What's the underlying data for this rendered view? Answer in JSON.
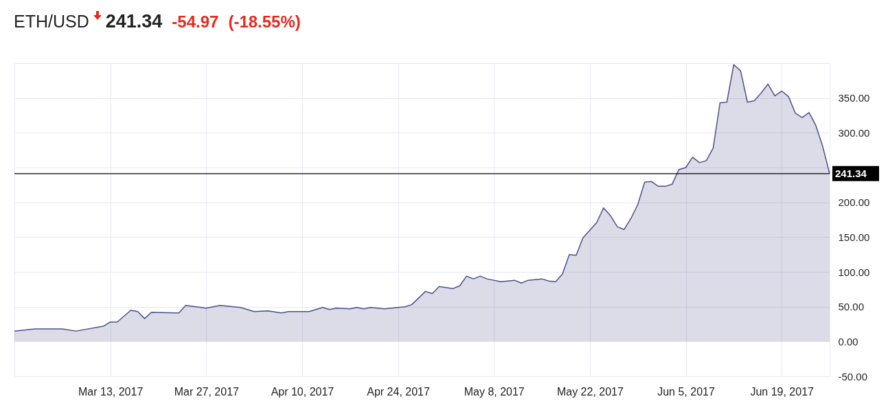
{
  "chart_data": {
    "type": "area",
    "title": "ETH/USD",
    "annotations": [
      "241.34",
      "-54.97",
      "(-18.55%)"
    ],
    "x": [
      "2017-02-27",
      "2017-03-02",
      "2017-03-06",
      "2017-03-08",
      "2017-03-12",
      "2017-03-13",
      "2017-03-14",
      "2017-03-16",
      "2017-03-17",
      "2017-03-18",
      "2017-03-19",
      "2017-03-23",
      "2017-03-24",
      "2017-03-27",
      "2017-03-29",
      "2017-04-01",
      "2017-04-03",
      "2017-04-05",
      "2017-04-07",
      "2017-04-08",
      "2017-04-11",
      "2017-04-13",
      "2017-04-14",
      "2017-04-15",
      "2017-04-17",
      "2017-04-18",
      "2017-04-19",
      "2017-04-20",
      "2017-04-22",
      "2017-04-24",
      "2017-04-25",
      "2017-04-26",
      "2017-04-28",
      "2017-04-29",
      "2017-04-30",
      "2017-05-02",
      "2017-05-03",
      "2017-05-04",
      "2017-05-05",
      "2017-05-06",
      "2017-05-07",
      "2017-05-09",
      "2017-05-11",
      "2017-05-12",
      "2017-05-13",
      "2017-05-15",
      "2017-05-16",
      "2017-05-17",
      "2017-05-18",
      "2017-05-19",
      "2017-05-20",
      "2017-05-21",
      "2017-05-22",
      "2017-05-23",
      "2017-05-24",
      "2017-05-25",
      "2017-05-26",
      "2017-05-27",
      "2017-05-28",
      "2017-05-29",
      "2017-05-30",
      "2017-05-31",
      "2017-06-01",
      "2017-06-02",
      "2017-06-03",
      "2017-06-04",
      "2017-06-05",
      "2017-06-06",
      "2017-06-07",
      "2017-06-08",
      "2017-06-09",
      "2017-06-10",
      "2017-06-11",
      "2017-06-12",
      "2017-06-13",
      "2017-06-14",
      "2017-06-15",
      "2017-06-16",
      "2017-06-17",
      "2017-06-18",
      "2017-06-19",
      "2017-06-20",
      "2017-06-21",
      "2017-06-22",
      "2017-06-23",
      "2017-06-24",
      "2017-06-25",
      "2017-06-26"
    ],
    "series": [
      {
        "color": "#4b5088",
        "values": [
          15,
          18,
          18,
          15,
          22,
          28,
          28,
          45,
          43,
          33,
          42,
          41,
          52,
          48,
          52,
          49,
          43,
          44,
          41,
          43,
          43,
          49,
          46,
          48,
          47,
          49,
          47,
          49,
          47,
          49,
          50,
          53,
          72,
          69,
          79,
          76,
          80,
          94,
          90,
          94,
          90,
          86,
          88,
          84,
          88,
          90,
          87,
          86,
          97,
          125,
          124,
          149,
          160,
          171,
          192,
          181,
          165,
          161,
          177,
          197,
          229,
          230,
          223,
          223,
          226,
          247,
          250,
          265,
          257,
          260,
          278,
          343,
          344,
          398,
          389,
          344,
          346,
          357,
          370,
          353,
          360,
          352,
          328,
          322,
          329,
          310,
          280,
          241.34
        ]
      }
    ],
    "xlim": [
      "2017-02-27",
      "2017-06-26"
    ],
    "xticks": [
      {
        "value": "2017-03-13",
        "label": "Mar 13, 2017"
      },
      {
        "value": "2017-03-27",
        "label": "Mar 27, 2017"
      },
      {
        "value": "2017-04-10",
        "label": "Apr 10, 2017"
      },
      {
        "value": "2017-04-24",
        "label": "Apr 24, 2017"
      },
      {
        "value": "2017-05-08",
        "label": "May 8, 2017"
      },
      {
        "value": "2017-05-22",
        "label": "May 22, 2017"
      },
      {
        "value": "2017-06-05",
        "label": "Jun 5, 2017"
      },
      {
        "value": "2017-06-19",
        "label": "Jun 19, 2017"
      }
    ],
    "ylim": [
      -50,
      400
    ],
    "yticks": [
      {
        "value": -50,
        "label": "-50.00"
      },
      {
        "value": 0,
        "label": "0.00"
      },
      {
        "value": 50,
        "label": "50.00"
      },
      {
        "value": 100,
        "label": "100.00"
      },
      {
        "value": 150,
        "label": "150.00"
      },
      {
        "value": 200,
        "label": "200.00"
      },
      {
        "value": 250,
        "label": null
      },
      {
        "value": 300,
        "label": "300.00"
      },
      {
        "value": 350,
        "label": "350.00"
      },
      {
        "value": 400,
        "label": null
      }
    ],
    "ref_lines": [
      {
        "axis": "y",
        "value": 241.34,
        "label": "241.34",
        "color": "#000000"
      }
    ],
    "grid": true
  }
}
